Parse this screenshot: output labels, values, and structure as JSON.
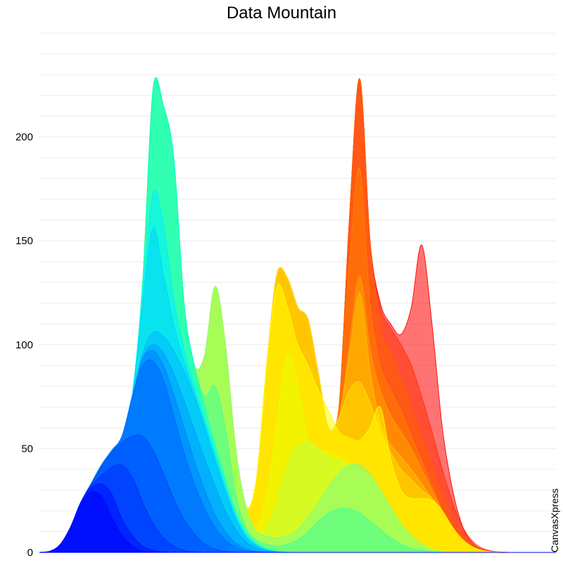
{
  "chart_data": {
    "type": "area",
    "title": "Data Mountain",
    "xlabel": "",
    "ylabel": "",
    "ylim": [
      0,
      250
    ],
    "y_ticks": [
      0,
      50,
      100,
      150,
      200
    ],
    "grid": true,
    "legend": "none",
    "x": [
      0,
      2,
      4,
      6,
      8,
      10,
      12,
      14,
      16,
      18,
      20,
      22,
      24,
      26,
      28,
      30,
      32,
      34,
      36,
      38,
      40,
      42,
      44,
      46,
      48,
      50,
      52,
      54,
      56,
      58,
      60,
      62,
      64,
      66,
      68,
      70,
      72,
      74,
      76,
      78,
      80,
      82,
      84,
      86,
      88,
      90,
      92,
      94,
      96,
      98,
      100
    ],
    "series": [
      {
        "color": "#0000ff",
        "values": [
          0,
          0.5,
          3.7,
          12,
          23,
          29,
          27,
          17,
          8,
          3,
          0.5,
          0.1,
          0,
          0,
          0,
          0,
          0,
          0,
          0,
          0,
          0,
          0,
          0,
          0,
          0,
          0,
          0,
          0,
          0,
          0,
          0,
          0,
          0,
          0,
          0,
          0,
          0,
          0,
          0,
          0,
          0,
          0,
          0,
          0,
          0,
          0,
          0,
          0,
          0,
          0,
          0
        ]
      },
      {
        "color": "#000dff",
        "values": [
          0,
          0.5,
          3.7,
          12,
          24,
          31,
          33,
          28,
          16,
          8,
          3,
          1,
          0.2,
          0,
          0,
          0,
          0,
          0,
          0,
          0,
          0,
          0,
          0,
          0,
          0,
          0,
          0,
          0,
          0,
          0,
          0,
          0,
          0,
          0,
          0,
          0,
          0,
          0,
          0,
          0,
          0,
          0,
          0,
          0,
          0,
          0,
          0,
          0,
          0,
          0,
          0
        ]
      },
      {
        "color": "#002dff",
        "values": [
          0,
          0.5,
          3.7,
          12,
          24,
          32,
          37,
          41,
          42,
          36,
          24,
          14,
          7,
          3,
          1,
          0.3,
          0,
          0,
          0,
          0,
          0,
          0,
          0,
          0,
          0,
          0,
          0,
          0,
          0,
          0,
          0,
          0,
          0,
          0,
          0,
          0,
          0,
          0,
          0,
          0,
          0,
          0,
          0,
          0,
          0,
          0,
          0,
          0,
          0,
          0,
          0
        ]
      },
      {
        "color": "#0049ff",
        "values": [
          0,
          0.5,
          3.7,
          12,
          24,
          33,
          41,
          48,
          53,
          56,
          56,
          49,
          38,
          26,
          16,
          9,
          4,
          1.6,
          0.5,
          0.1,
          0,
          0,
          0,
          0,
          0,
          0,
          0,
          0,
          0,
          0,
          0,
          0,
          0,
          0,
          0,
          0,
          0,
          0,
          0,
          0,
          0,
          0,
          0,
          0,
          0,
          0,
          0,
          0,
          0,
          0,
          0
        ]
      },
      {
        "color": "#0066ff",
        "values": [
          0,
          0.5,
          3.7,
          12,
          24,
          33,
          42,
          49,
          56,
          74,
          90,
          92,
          83,
          66,
          48,
          33,
          21,
          12,
          6,
          2.5,
          0.8,
          0.2,
          0,
          0,
          0,
          0,
          0,
          0,
          0,
          0,
          0,
          0,
          0,
          0,
          0,
          0,
          0,
          0,
          0,
          0,
          0,
          0,
          0,
          0,
          0,
          0,
          0,
          0,
          0,
          0,
          0
        ]
      },
      {
        "color": "#0080ff",
        "values": [
          0,
          0.5,
          3.7,
          12,
          24,
          33,
          42,
          49,
          56,
          75,
          93,
          97,
          90,
          76,
          60,
          44,
          30,
          18,
          10,
          4.5,
          1.8,
          0.6,
          0.2,
          0,
          0,
          0,
          0,
          0,
          0,
          0,
          0,
          0,
          0,
          0,
          0,
          0,
          0,
          0,
          0,
          0,
          0,
          0,
          0,
          0,
          0,
          0,
          0,
          0,
          0,
          0,
          0
        ]
      },
      {
        "color": "#009cff",
        "values": [
          0,
          0.5,
          3.7,
          12,
          24,
          33,
          42,
          49,
          56,
          75,
          94,
          100,
          96,
          86,
          73,
          59,
          45,
          32,
          20,
          11,
          5,
          2,
          0.7,
          0.2,
          0,
          0,
          0,
          0,
          0,
          0,
          0,
          0,
          0,
          0,
          0,
          0,
          0,
          0,
          0,
          0,
          0,
          0,
          0,
          0,
          0,
          0,
          0,
          0,
          0,
          0,
          0
        ]
      },
      {
        "color": "#00b8ff",
        "values": [
          0,
          0.5,
          3.7,
          12,
          24,
          33,
          42,
          49,
          56,
          76,
          96,
          106,
          104,
          97,
          87,
          75,
          60,
          44,
          29,
          16,
          7,
          3,
          1,
          0.3,
          0,
          0,
          0,
          0,
          0,
          0,
          0,
          0,
          0,
          0,
          0,
          0,
          0,
          0,
          0,
          0,
          0,
          0,
          0,
          0,
          0,
          0,
          0,
          0,
          0,
          0,
          0
        ]
      },
      {
        "color": "#00d4ff",
        "values": [
          0,
          0.5,
          3.7,
          12,
          24,
          33,
          42,
          49,
          56,
          76,
          120,
          156,
          134,
          110,
          92,
          77,
          62,
          46,
          31,
          17,
          8,
          3.5,
          1.2,
          0.4,
          0,
          0,
          0,
          0,
          0,
          0,
          0,
          0,
          0,
          0,
          0,
          0,
          0,
          0,
          0,
          0,
          0,
          0,
          0,
          0,
          0,
          0,
          0,
          0,
          0,
          0,
          0
        ]
      },
      {
        "color": "#00eeff",
        "values": [
          0,
          0.5,
          3.7,
          12,
          24,
          33,
          42,
          49,
          56,
          76,
          125,
          173,
          158,
          122,
          98,
          80,
          64,
          48,
          32,
          18,
          9,
          4,
          1.5,
          0.5,
          0.1,
          0,
          0,
          0,
          0,
          0,
          0,
          0,
          0,
          0,
          0,
          0,
          0,
          0,
          0,
          0,
          0,
          0,
          0,
          0,
          0,
          0,
          0,
          0,
          0,
          0,
          0
        ]
      },
      {
        "color": "#00ffdd",
        "values": [
          0,
          0.5,
          3.7,
          12,
          24,
          33,
          42,
          49,
          56,
          76,
          130,
          223,
          215,
          190,
          120,
          90,
          70,
          52,
          35,
          20,
          10,
          4.5,
          1.8,
          0.6,
          0.2,
          0,
          0,
          0,
          0,
          0,
          0,
          0,
          0,
          0,
          0,
          0,
          0,
          0,
          0,
          0,
          0,
          0,
          0,
          0,
          0,
          0,
          0,
          0,
          0,
          0,
          0
        ]
      },
      {
        "color": "#40ff9c",
        "values": [
          0,
          0.5,
          3.7,
          12,
          24,
          33,
          42,
          49,
          56,
          76,
          130,
          223,
          215,
          190,
          120,
          90,
          75,
          80,
          60,
          28,
          12,
          6,
          4,
          3,
          4,
          6,
          10,
          15,
          19,
          21,
          21,
          19,
          15,
          11,
          7,
          4,
          2,
          1,
          0.3,
          0,
          0,
          0,
          0,
          0,
          0,
          0,
          0,
          0,
          0,
          0,
          0
        ]
      },
      {
        "color": "#80ff80",
        "values": [
          0,
          0.5,
          3.7,
          12,
          24,
          33,
          42,
          49,
          56,
          76,
          130,
          223,
          215,
          190,
          120,
          90,
          95,
          128,
          100,
          50,
          22,
          10,
          8,
          7,
          8,
          11,
          17,
          24,
          32,
          38,
          42,
          42,
          38,
          30,
          22,
          14,
          8,
          4,
          1.5,
          0.5,
          0.1,
          0,
          0,
          0,
          0,
          0,
          0,
          0,
          0,
          0,
          0
        ]
      },
      {
        "color": "#c0ff40",
        "values": [
          0,
          0.5,
          3.7,
          12,
          24,
          33,
          42,
          49,
          56,
          76,
          130,
          223,
          215,
          190,
          120,
          90,
          95,
          128,
          100,
          50,
          22,
          10,
          12,
          24,
          42,
          51,
          53,
          50,
          46,
          44,
          42,
          40,
          35,
          28,
          20,
          13,
          7,
          3.5,
          1.5,
          0.5,
          0.1,
          0,
          0,
          0,
          0,
          0,
          0,
          0,
          0,
          0,
          0
        ]
      },
      {
        "color": "#eaff00",
        "values": [
          0,
          0.5,
          3.7,
          12,
          24,
          33,
          42,
          49,
          56,
          76,
          130,
          223,
          215,
          190,
          120,
          90,
          95,
          128,
          100,
          50,
          22,
          12,
          28,
          63,
          95,
          80,
          55,
          50,
          48,
          46,
          43,
          40,
          36,
          30,
          22,
          14,
          8,
          4,
          2,
          0.7,
          0.2,
          0,
          0,
          0,
          0,
          0,
          0,
          0,
          0,
          0,
          0
        ]
      },
      {
        "color": "#ffff00",
        "values": [
          0,
          0.5,
          3.7,
          12,
          24,
          33,
          42,
          49,
          56,
          76,
          130,
          223,
          215,
          190,
          120,
          90,
          95,
          128,
          100,
          50,
          22,
          35,
          90,
          128,
          118,
          100,
          90,
          78,
          68,
          58,
          55,
          54,
          60,
          70,
          45,
          30,
          26,
          26,
          25,
          20,
          12,
          6,
          2.5,
          0.8,
          0.2,
          0,
          0,
          0,
          0,
          0,
          0
        ]
      },
      {
        "color": "#ffe000",
        "values": [
          0,
          0.5,
          3.7,
          12,
          24,
          33,
          42,
          49,
          56,
          76,
          130,
          223,
          215,
          190,
          120,
          90,
          95,
          128,
          100,
          50,
          22,
          35,
          90,
          134,
          132,
          118,
          112,
          86,
          60,
          65,
          78,
          82,
          72,
          58,
          48,
          40,
          35,
          30,
          26,
          20,
          12,
          6,
          2.5,
          0.8,
          0.2,
          0,
          0,
          0,
          0,
          0,
          0
        ]
      },
      {
        "color": "#ffc000",
        "values": [
          0,
          0.5,
          3.7,
          12,
          24,
          33,
          42,
          49,
          56,
          76,
          130,
          223,
          215,
          190,
          120,
          90,
          95,
          128,
          100,
          50,
          22,
          35,
          90,
          134,
          132,
          118,
          112,
          86,
          60,
          65,
          95,
          125,
          88,
          62,
          52,
          46,
          40,
          33,
          26,
          18,
          10,
          5,
          2,
          0.6,
          0.1,
          0,
          0,
          0,
          0,
          0,
          0
        ]
      },
      {
        "color": "#ffa000",
        "values": [
          0,
          0.5,
          3.7,
          12,
          24,
          33,
          42,
          49,
          56,
          76,
          130,
          223,
          215,
          190,
          120,
          90,
          95,
          128,
          100,
          50,
          22,
          35,
          90,
          134,
          132,
          118,
          112,
          86,
          60,
          65,
          100,
          133,
          98,
          78,
          66,
          58,
          50,
          40,
          30,
          20,
          11,
          5,
          2,
          0.6,
          0.1,
          0,
          0,
          0,
          0,
          0,
          0
        ]
      },
      {
        "color": "#ff8000",
        "values": [
          0,
          0.5,
          3.7,
          12,
          24,
          33,
          42,
          49,
          56,
          76,
          130,
          223,
          215,
          190,
          120,
          90,
          95,
          128,
          100,
          50,
          22,
          35,
          90,
          134,
          132,
          118,
          112,
          86,
          60,
          70,
          140,
          185,
          120,
          90,
          78,
          68,
          56,
          44,
          32,
          20,
          11,
          5,
          2,
          0.6,
          0.1,
          0,
          0,
          0,
          0,
          0,
          0
        ]
      },
      {
        "color": "#ff6000",
        "values": [
          0,
          0.5,
          3.7,
          12,
          24,
          33,
          42,
          49,
          56,
          76,
          130,
          223,
          215,
          190,
          120,
          90,
          95,
          128,
          100,
          50,
          22,
          35,
          90,
          134,
          132,
          118,
          112,
          86,
          60,
          70,
          160,
          228,
          150,
          110,
          96,
          84,
          70,
          56,
          42,
          28,
          16,
          8,
          3,
          1,
          0.2,
          0,
          0,
          0,
          0,
          0,
          0
        ]
      },
      {
        "color": "#ff3000",
        "values": [
          0,
          0.5,
          3.7,
          12,
          24,
          33,
          42,
          49,
          56,
          76,
          130,
          223,
          215,
          190,
          120,
          90,
          95,
          128,
          100,
          50,
          22,
          35,
          90,
          134,
          132,
          118,
          112,
          86,
          60,
          70,
          160,
          228,
          150,
          118,
          108,
          100,
          90,
          75,
          58,
          40,
          24,
          12,
          5,
          1.8,
          0.5,
          0.1,
          0,
          0,
          0,
          0,
          0
        ]
      },
      {
        "color": "#ff0000",
        "values": [
          0,
          0.5,
          3.7,
          12,
          24,
          33,
          42,
          49,
          56,
          76,
          130,
          223,
          215,
          190,
          120,
          90,
          95,
          128,
          100,
          50,
          22,
          35,
          90,
          134,
          132,
          118,
          112,
          86,
          60,
          70,
          160,
          228,
          150,
          120,
          110,
          105,
          118,
          148,
          110,
          60,
          30,
          12,
          4,
          1.2,
          0.3,
          0.1,
          0,
          0,
          0,
          0,
          0
        ]
      }
    ]
  },
  "watermark": "CanvasXpress"
}
